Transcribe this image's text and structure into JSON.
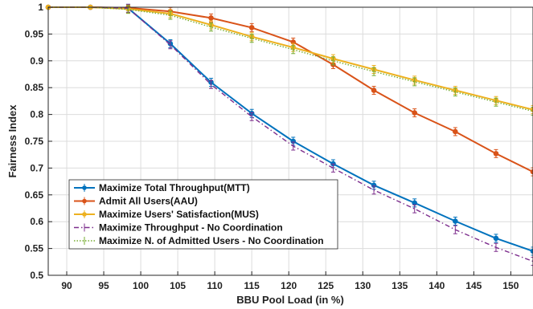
{
  "chart_data": {
    "type": "line",
    "title": "",
    "xlabel": "BBU Pool Load (in %)",
    "ylabel": "Fairness Index",
    "xlim": [
      87.5,
      153
    ],
    "ylim": [
      0.5,
      1.0
    ],
    "xticks": [
      "90",
      "95",
      "100",
      "105",
      "110",
      "115",
      "120",
      "125",
      "130",
      "135",
      "140",
      "145",
      "150"
    ],
    "yticks": [
      "0.5",
      "0.55",
      "0.6",
      "0.65",
      "0.7",
      "0.75",
      "0.8",
      "0.85",
      "0.9",
      "0.95",
      "1"
    ],
    "grid": true,
    "legend_position": "bottom-left",
    "series": [
      {
        "name": "Maximize Total Throughput(MTT)",
        "color": "#0072BD",
        "linestyle": "solid",
        "marker": "circle",
        "x": [
          87.5,
          93.2,
          98.3,
          104.0,
          109.5,
          115.0,
          120.6,
          126.0,
          131.5,
          137.0,
          142.5,
          148.0,
          153.0
        ],
        "y": [
          1.0,
          1.0,
          0.998,
          0.932,
          0.86,
          0.802,
          0.75,
          0.708,
          0.668,
          0.635,
          0.601,
          0.569,
          0.545
        ]
      },
      {
        "name": "Admit All Users(AAU)",
        "color": "#D95319",
        "linestyle": "solid",
        "marker": "circle",
        "x": [
          87.5,
          93.2,
          98.3,
          104.0,
          109.5,
          115.0,
          120.6,
          126.0,
          131.5,
          137.0,
          142.5,
          148.0,
          153.0
        ],
        "y": [
          1.0,
          1.0,
          0.999,
          0.992,
          0.98,
          0.962,
          0.935,
          0.893,
          0.845,
          0.803,
          0.768,
          0.727,
          0.693
        ]
      },
      {
        "name": "Maximize Users' Satisfaction(MUS)",
        "color": "#EDB120",
        "linestyle": "solid",
        "marker": "circle",
        "x": [
          87.5,
          93.2,
          98.3,
          104.0,
          109.5,
          115.0,
          120.6,
          126.0,
          131.5,
          137.0,
          142.5,
          148.0,
          153.0
        ],
        "y": [
          1.0,
          1.0,
          0.997,
          0.988,
          0.967,
          0.945,
          0.925,
          0.904,
          0.884,
          0.864,
          0.845,
          0.826,
          0.809
        ]
      },
      {
        "name": "Maximize Throughput - No Coordination",
        "color": "#7E2F8E",
        "linestyle": "dashdot",
        "marker": "none",
        "x": [
          87.5,
          93.2,
          98.3,
          104.0,
          109.5,
          115.0,
          120.6,
          126.0,
          131.5,
          137.0,
          142.5,
          148.0,
          153.0
        ],
        "y": [
          1.0,
          1.0,
          0.998,
          0.93,
          0.856,
          0.796,
          0.741,
          0.7,
          0.659,
          0.624,
          0.585,
          0.552,
          0.526
        ]
      },
      {
        "name": "Maximize N. of Admitted Users - No Coordination",
        "color": "#77AC30",
        "linestyle": "dotted",
        "marker": "none",
        "x": [
          87.5,
          93.2,
          98.3,
          104.0,
          109.5,
          115.0,
          120.6,
          126.0,
          131.5,
          137.0,
          142.5,
          148.0,
          153.0
        ],
        "y": [
          1.0,
          1.0,
          0.996,
          0.985,
          0.963,
          0.942,
          0.921,
          0.9,
          0.88,
          0.861,
          0.842,
          0.823,
          0.806
        ]
      }
    ]
  }
}
